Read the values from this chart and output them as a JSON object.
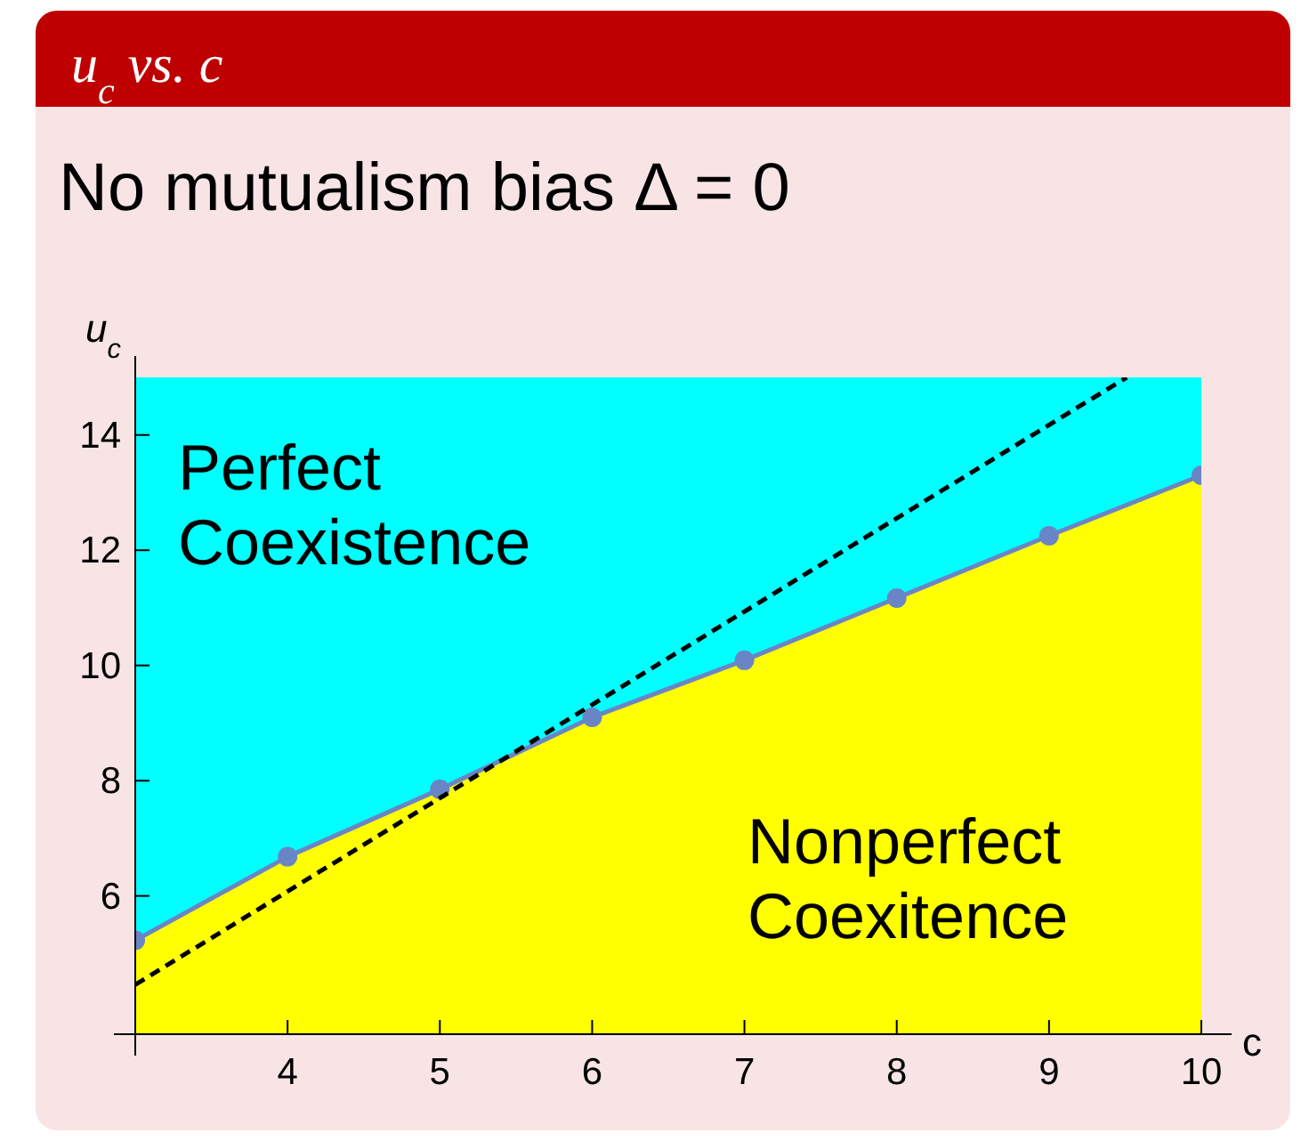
{
  "chart_data": {
    "type": "line",
    "title": "u$_{c}$ vs. c",
    "subtitle": "No mutualism bias Δ = 0",
    "xlabel": "c",
    "ylabel": "u$_{c}$",
    "x": [
      3,
      4,
      5,
      6,
      7,
      8,
      9,
      10
    ],
    "xlim": [
      3,
      10
    ],
    "xticks": [
      4,
      5,
      6,
      7,
      8,
      9,
      10
    ],
    "ylim": [
      3.6,
      15
    ],
    "yticks": [
      6,
      8,
      10,
      12,
      14
    ],
    "series": [
      {
        "type": "area",
        "color": "#ffff00",
        "values": [
          5.23,
          6.68,
          7.85,
          9.1,
          10.09,
          11.17,
          12.25,
          13.3
        ]
      },
      {
        "color": "#6a85c5",
        "values": [
          5.23,
          6.68,
          7.85,
          9.1,
          10.09,
          11.17,
          12.25,
          13.3
        ],
        "marker": "circle"
      },
      {
        "color": "#000000",
        "x": [
          3,
          9.51
        ],
        "values": [
          4.46,
          15
        ],
        "line_style": "dashed"
      }
    ],
    "bands": [
      {
        "axis": "y",
        "from": 3.6,
        "to": 15,
        "color": "#00ffff"
      }
    ],
    "annotations": [
      "Perfect\nCoexistence",
      "Nonperfect\nCoexitence"
    ],
    "grid": false
  }
}
